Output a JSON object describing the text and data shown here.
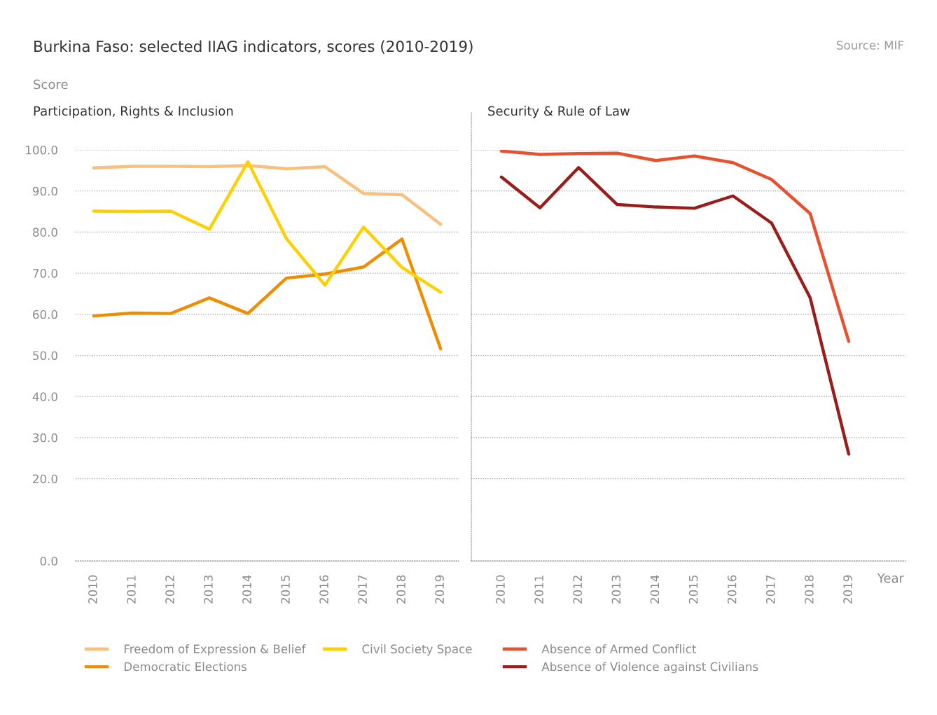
{
  "chart_data": [
    {
      "type": "line",
      "title": "Burkina Faso: selected IIAG indicators, scores (2010-2019)",
      "subtitle": "Participation, Rights & Inclusion",
      "ylabel": "Score",
      "annotations": [
        "Source: MIF"
      ],
      "categories": [
        "2010",
        "2011",
        "2012",
        "2013",
        "2014",
        "2015",
        "2016",
        "2017",
        "2018",
        "2019"
      ],
      "series": [
        {
          "name": "Freedom of Expression & Belief",
          "color": "#f9bf7d",
          "values": [
            95.6,
            96.0,
            96.0,
            95.9,
            96.2,
            95.4,
            95.9,
            89.4,
            89.1,
            81.9
          ]
        },
        {
          "name": "Democratic Elections",
          "color": "#ef8c00",
          "values": [
            59.6,
            60.3,
            60.2,
            64.0,
            60.2,
            68.8,
            69.8,
            71.5,
            78.3,
            51.6
          ]
        },
        {
          "name": "Civil Society Space",
          "color": "#fdd000",
          "values": [
            85.1,
            85.0,
            85.1,
            80.7,
            97.1,
            78.4,
            67.1,
            81.2,
            71.4,
            65.4
          ]
        }
      ],
      "ylim": [
        0,
        100
      ],
      "yticks": [
        {
          "value": 0,
          "label": "0.0"
        },
        {
          "value": 20,
          "label": "20.0"
        },
        {
          "value": 30,
          "label": "30.0"
        },
        {
          "value": 40,
          "label": "40.0"
        },
        {
          "value": 50,
          "label": "50.0"
        },
        {
          "value": 60,
          "label": "60.0"
        },
        {
          "value": 70,
          "label": "70.0"
        },
        {
          "value": 80,
          "label": "80.0"
        },
        {
          "value": 90,
          "label": "90.0"
        },
        {
          "value": 100,
          "label": "100.0"
        }
      ],
      "grid": "y",
      "legend": "bottom",
      "marker": "none",
      "line_style": "solid"
    },
    {
      "type": "line",
      "subtitle": "Security & Rule of Law",
      "xlabel": "Year",
      "categories": [
        "2010",
        "2011",
        "2012",
        "2013",
        "2014",
        "2015",
        "2016",
        "2017",
        "2018",
        "2019"
      ],
      "series": [
        {
          "name": "Absence of Armed Conflict",
          "color": "#e8512f",
          "values": [
            99.7,
            98.9,
            99.1,
            99.2,
            97.4,
            98.5,
            96.9,
            92.8,
            84.5,
            53.4
          ]
        },
        {
          "name": "Absence of Violence against Civilians",
          "color": "#9b1d1b",
          "values": [
            93.4,
            85.9,
            95.7,
            86.7,
            86.1,
            85.8,
            88.8,
            82.2,
            64.0,
            26.0
          ]
        }
      ],
      "ylim": [
        0,
        100
      ],
      "yticks": [
        0,
        20,
        30,
        40,
        50,
        60,
        70,
        80,
        90,
        100
      ],
      "tick_labels": "x",
      "grid": "y",
      "legend": "bottom",
      "marker": "none",
      "line_style": "solid"
    }
  ]
}
